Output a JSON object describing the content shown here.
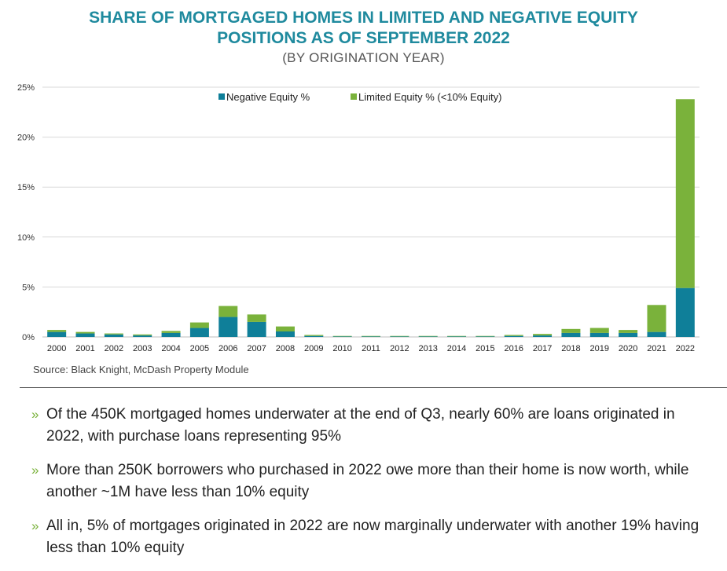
{
  "header": {
    "title_line1": "SHARE OF MORTGAGED HOMES IN LIMITED AND NEGATIVE EQUITY",
    "title_line2": "POSITIONS AS OF SEPTEMBER 2022",
    "subtitle": "(BY ORIGINATION YEAR)"
  },
  "source": "Source: Black Knight, McDash Property Module",
  "bullet_marker": "»",
  "bullets": [
    "Of the 450K mortgaged homes underwater at the end of Q3, nearly 60% are loans originated in 2022, with purchase loans representing 95%",
    "More than 250K borrowers who purchased in 2022 owe more than their home is now worth, while another ~1M have less than 10% equity",
    "All in, 5% of mortgages originated in 2022 are now marginally underwater with another 19% having less than 10% equity"
  ],
  "colors": {
    "negative": "#0f7f99",
    "limited": "#7ab23b",
    "title": "#1f8a9e",
    "grid": "#d9d9d9"
  },
  "chart_data": {
    "type": "bar",
    "stacked": true,
    "categories": [
      "2000",
      "2001",
      "2002",
      "2003",
      "2004",
      "2005",
      "2006",
      "2007",
      "2008",
      "2009",
      "2010",
      "2011",
      "2012",
      "2013",
      "2014",
      "2015",
      "2016",
      "2017",
      "2018",
      "2019",
      "2020",
      "2021",
      "2022"
    ],
    "series": [
      {
        "name": "Negative Equity %",
        "values": [
          0.5,
          0.35,
          0.25,
          0.15,
          0.4,
          0.9,
          2.0,
          1.5,
          0.55,
          0.1,
          0.05,
          0.05,
          0.05,
          0.05,
          0.05,
          0.05,
          0.1,
          0.15,
          0.4,
          0.4,
          0.4,
          0.5,
          4.9
        ]
      },
      {
        "name": "Limited Equity % (<10% Equity)",
        "values": [
          0.2,
          0.15,
          0.1,
          0.1,
          0.2,
          0.55,
          1.1,
          0.75,
          0.5,
          0.1,
          0.05,
          0.05,
          0.05,
          0.05,
          0.05,
          0.05,
          0.1,
          0.15,
          0.4,
          0.5,
          0.3,
          2.7,
          18.9
        ]
      }
    ],
    "yticks": [
      "0%",
      "5%",
      "10%",
      "15%",
      "20%",
      "25%"
    ],
    "ylim": [
      0,
      25
    ],
    "grid": true,
    "legend_position": "top-center"
  }
}
